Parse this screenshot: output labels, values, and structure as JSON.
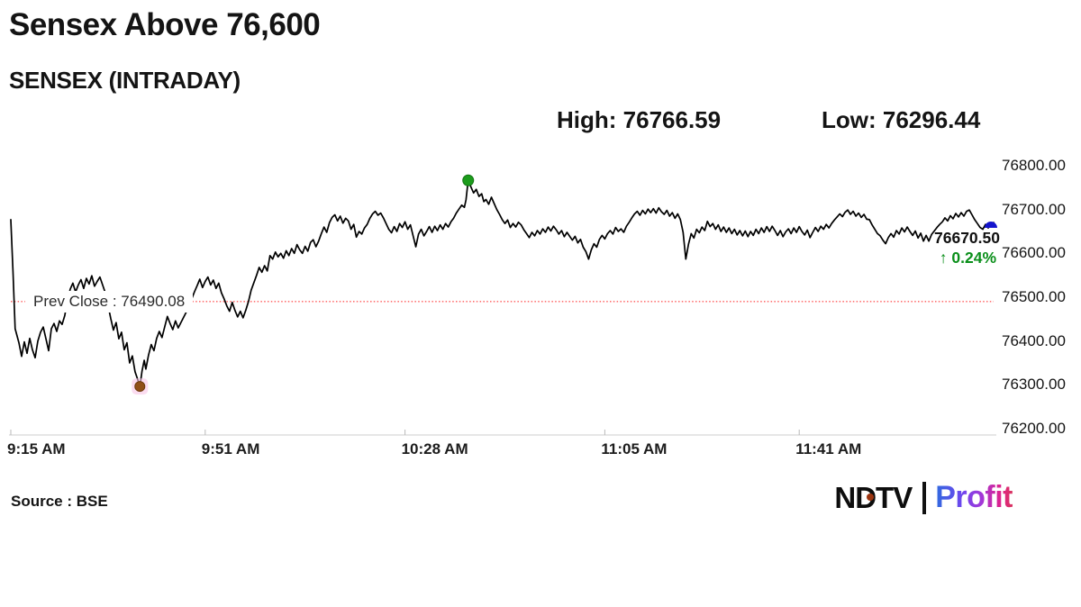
{
  "header": {
    "title": "Sensex Above 76,600",
    "subtitle": "SENSEX (INTRADAY)",
    "high_label": "High: 76766.59",
    "low_label": "Low: 76296.44"
  },
  "chart": {
    "prev_close_label": "Prev Close : 76490.08",
    "last_price_label": "76670.50",
    "change_label": "↑ 0.24%"
  },
  "footer": {
    "source": "Source : BSE",
    "logo_ndtv": "NDTV",
    "logo_profit": "Profit"
  },
  "colors": {
    "text": "#141414",
    "line": "#000000",
    "prev_close_line": "#ff5a5a",
    "gain_green": "#0a8f1a",
    "high_marker": "#1c9c1c",
    "high_marker_edge": "#127312",
    "low_marker": "#915018",
    "low_marker_edge": "#6b3a0e",
    "low_marker_halo": "#f8c4e6",
    "last_marker": "#1414cd",
    "axis": "#cccccc",
    "tick": "#b9b9b9",
    "ndtv_dot": "#9c3510"
  },
  "chart_data": {
    "type": "line",
    "title": "SENSEX (INTRADAY)",
    "series_name": "SENSEX",
    "x_unit": "minutes since 9:15 AM",
    "x_range_minutes": [
      0,
      182
    ],
    "x_ticks": [
      {
        "t": 0,
        "label": "9:15 AM"
      },
      {
        "t": 36,
        "label": "9:51 AM"
      },
      {
        "t": 73,
        "label": "10:28 AM"
      },
      {
        "t": 110,
        "label": "11:05 AM"
      },
      {
        "t": 146,
        "label": "11:41 AM"
      }
    ],
    "ylim": [
      76200,
      76800
    ],
    "y_ticks": [
      76800,
      76700,
      76600,
      76500,
      76400,
      76300,
      76200
    ],
    "grid": false,
    "legend": false,
    "prev_close": 76490.08,
    "high": {
      "t": 84.7,
      "value": 76766.59
    },
    "low": {
      "t": 23.9,
      "value": 76296.44
    },
    "last": {
      "t": 182,
      "value": 76670.5,
      "change_pct": 0.24
    },
    "points": [
      [
        0,
        76677
      ],
      [
        0.4,
        76560
      ],
      [
        0.8,
        76428
      ],
      [
        1.5,
        76396
      ],
      [
        2,
        76365
      ],
      [
        2.5,
        76398
      ],
      [
        3,
        76372
      ],
      [
        3.5,
        76406
      ],
      [
        4,
        76380
      ],
      [
        4.5,
        76362
      ],
      [
        5,
        76400
      ],
      [
        5.5,
        76420
      ],
      [
        6,
        76432
      ],
      [
        6.5,
        76405
      ],
      [
        7,
        76378
      ],
      [
        7.5,
        76428
      ],
      [
        8,
        76440
      ],
      [
        8.5,
        76422
      ],
      [
        9,
        76446
      ],
      [
        9.5,
        76438
      ],
      [
        10,
        76458
      ],
      [
        10.5,
        76492
      ],
      [
        11,
        76518
      ],
      [
        11.5,
        76532
      ],
      [
        12,
        76512
      ],
      [
        12.5,
        76528
      ],
      [
        13,
        76540
      ],
      [
        13.5,
        76520
      ],
      [
        14,
        76543
      ],
      [
        14.5,
        76530
      ],
      [
        15,
        76549
      ],
      [
        15.5,
        76525
      ],
      [
        16,
        76536
      ],
      [
        16.5,
        76546
      ],
      [
        17,
        76528
      ],
      [
        17.5,
        76510
      ],
      [
        18,
        76482
      ],
      [
        18.5,
        76452
      ],
      [
        19,
        76425
      ],
      [
        19.5,
        76442
      ],
      [
        20,
        76405
      ],
      [
        20.5,
        76420
      ],
      [
        21,
        76380
      ],
      [
        21.5,
        76396
      ],
      [
        22,
        76350
      ],
      [
        22.5,
        76366
      ],
      [
        23,
        76330
      ],
      [
        23.5,
        76312
      ],
      [
        23.9,
        76296.44
      ],
      [
        24.3,
        76332
      ],
      [
        24.7,
        76356
      ],
      [
        25,
        76336
      ],
      [
        25.5,
        76368
      ],
      [
        26,
        76392
      ],
      [
        26.5,
        76378
      ],
      [
        27,
        76406
      ],
      [
        27.5,
        76422
      ],
      [
        28,
        76408
      ],
      [
        28.5,
        76432
      ],
      [
        29,
        76456
      ],
      [
        29.5,
        76440
      ],
      [
        30,
        76426
      ],
      [
        30.5,
        76446
      ],
      [
        31,
        76430
      ],
      [
        31.5,
        76442
      ],
      [
        32,
        76454
      ],
      [
        32.5,
        76466
      ],
      [
        33,
        76482
      ],
      [
        33.5,
        76496
      ],
      [
        34,
        76512
      ],
      [
        34.5,
        76526
      ],
      [
        35,
        76541
      ],
      [
        35.5,
        76522
      ],
      [
        36,
        76536
      ],
      [
        36.5,
        76546
      ],
      [
        37,
        76528
      ],
      [
        37.5,
        76539
      ],
      [
        38,
        76520
      ],
      [
        38.5,
        76532
      ],
      [
        39,
        76510
      ],
      [
        39.5,
        76496
      ],
      [
        40,
        76480
      ],
      [
        40.5,
        76468
      ],
      [
        41,
        76488
      ],
      [
        41.5,
        76470
      ],
      [
        42,
        76455
      ],
      [
        42.5,
        76468
      ],
      [
        43,
        76453
      ],
      [
        43.5,
        76470
      ],
      [
        44,
        76490
      ],
      [
        44.5,
        76516
      ],
      [
        45,
        76533
      ],
      [
        45.5,
        76550
      ],
      [
        46,
        76568
      ],
      [
        46.5,
        76557
      ],
      [
        47,
        76572
      ],
      [
        47.5,
        76560
      ],
      [
        48,
        76595
      ],
      [
        48.5,
        76587
      ],
      [
        49,
        76603
      ],
      [
        49.5,
        76592
      ],
      [
        50,
        76600
      ],
      [
        50.5,
        76589
      ],
      [
        51,
        76606
      ],
      [
        51.5,
        76595
      ],
      [
        52,
        76611
      ],
      [
        52.5,
        76600
      ],
      [
        53,
        76620
      ],
      [
        53.5,
        76608
      ],
      [
        54,
        76600
      ],
      [
        54.5,
        76616
      ],
      [
        55,
        76605
      ],
      [
        55.5,
        76625
      ],
      [
        56,
        76631
      ],
      [
        56.5,
        76615
      ],
      [
        57,
        76628
      ],
      [
        57.5,
        76645
      ],
      [
        58,
        76660
      ],
      [
        58.5,
        76648
      ],
      [
        59,
        76670
      ],
      [
        59.5,
        76682
      ],
      [
        60,
        76688
      ],
      [
        60.5,
        76674
      ],
      [
        61,
        76685
      ],
      [
        61.5,
        76669
      ],
      [
        62,
        76680
      ],
      [
        62.5,
        76674
      ],
      [
        63,
        76655
      ],
      [
        63.5,
        76666
      ],
      [
        64,
        76637
      ],
      [
        64.5,
        76650
      ],
      [
        65,
        76644
      ],
      [
        65.5,
        76658
      ],
      [
        66,
        76666
      ],
      [
        66.5,
        76680
      ],
      [
        67,
        76690
      ],
      [
        67.5,
        76696
      ],
      [
        68,
        76687
      ],
      [
        68.5,
        76692
      ],
      [
        69,
        76681
      ],
      [
        69.5,
        76668
      ],
      [
        70,
        76655
      ],
      [
        70.5,
        76647
      ],
      [
        71,
        76661
      ],
      [
        71.5,
        76650
      ],
      [
        72,
        76668
      ],
      [
        72.5,
        76659
      ],
      [
        73,
        76672
      ],
      [
        73.5,
        76655
      ],
      [
        74,
        76665
      ],
      [
        74.5,
        76640
      ],
      [
        75,
        76615
      ],
      [
        75.5,
        76644
      ],
      [
        76,
        76655
      ],
      [
        76.5,
        76640
      ],
      [
        77,
        76650
      ],
      [
        77.5,
        76661
      ],
      [
        78,
        76648
      ],
      [
        78.5,
        76662
      ],
      [
        79,
        76652
      ],
      [
        79.5,
        76665
      ],
      [
        80,
        76655
      ],
      [
        80.5,
        76668
      ],
      [
        81,
        76660
      ],
      [
        81.5,
        76672
      ],
      [
        82,
        76680
      ],
      [
        82.5,
        76692
      ],
      [
        83,
        76701
      ],
      [
        83.5,
        76710
      ],
      [
        84,
        76705
      ],
      [
        84.3,
        76722
      ],
      [
        84.7,
        76766.59
      ],
      [
        85.2,
        76752
      ],
      [
        85.7,
        76738
      ],
      [
        86.2,
        76746
      ],
      [
        86.7,
        76730
      ],
      [
        87.2,
        76736
      ],
      [
        87.6,
        76718
      ],
      [
        88,
        76723
      ],
      [
        88.5,
        76712
      ],
      [
        89,
        76728
      ],
      [
        89.5,
        76714
      ],
      [
        90,
        76700
      ],
      [
        90.5,
        76689
      ],
      [
        91,
        76677
      ],
      [
        91.5,
        76668
      ],
      [
        92,
        76676
      ],
      [
        92.5,
        76659
      ],
      [
        93,
        76668
      ],
      [
        93.5,
        76660
      ],
      [
        94,
        76671
      ],
      [
        94.5,
        76665
      ],
      [
        95,
        76654
      ],
      [
        95.5,
        76645
      ],
      [
        96,
        76636
      ],
      [
        96.5,
        76648
      ],
      [
        97,
        76640
      ],
      [
        97.5,
        76652
      ],
      [
        98,
        76644
      ],
      [
        98.5,
        76656
      ],
      [
        99,
        76648
      ],
      [
        99.5,
        76660
      ],
      [
        100,
        76651
      ],
      [
        100.5,
        76662
      ],
      [
        101,
        76654
      ],
      [
        101.5,
        76644
      ],
      [
        102,
        76652
      ],
      [
        102.5,
        76638
      ],
      [
        103,
        76648
      ],
      [
        103.5,
        76639
      ],
      [
        104,
        76630
      ],
      [
        104.5,
        76639
      ],
      [
        105,
        76624
      ],
      [
        105.5,
        76632
      ],
      [
        106,
        76614
      ],
      [
        106.5,
        76604
      ],
      [
        107,
        76587
      ],
      [
        107.5,
        76608
      ],
      [
        108,
        76622
      ],
      [
        108.5,
        76614
      ],
      [
        109,
        76632
      ],
      [
        109.5,
        76641
      ],
      [
        110,
        76633
      ],
      [
        110.5,
        76645
      ],
      [
        111,
        76652
      ],
      [
        111.5,
        76644
      ],
      [
        112,
        76659
      ],
      [
        112.5,
        76650
      ],
      [
        113,
        76656
      ],
      [
        113.5,
        76648
      ],
      [
        114,
        76662
      ],
      [
        114.5,
        76671
      ],
      [
        115,
        76681
      ],
      [
        115.5,
        76690
      ],
      [
        116,
        76696
      ],
      [
        116.5,
        76687
      ],
      [
        117,
        76698
      ],
      [
        117.5,
        76690
      ],
      [
        118,
        76701
      ],
      [
        118.5,
        76693
      ],
      [
        119,
        76702
      ],
      [
        119.5,
        76692
      ],
      [
        120,
        76704
      ],
      [
        120.5,
        76695
      ],
      [
        121,
        76689
      ],
      [
        121.5,
        76698
      ],
      [
        122,
        76685
      ],
      [
        122.5,
        76693
      ],
      [
        123,
        76680
      ],
      [
        123.5,
        76690
      ],
      [
        124,
        76677
      ],
      [
        124.5,
        76648
      ],
      [
        125,
        76587
      ],
      [
        125.5,
        76621
      ],
      [
        126,
        76645
      ],
      [
        126.5,
        76635
      ],
      [
        127,
        76655
      ],
      [
        127.5,
        76647
      ],
      [
        128,
        76660
      ],
      [
        128.5,
        76652
      ],
      [
        129,
        76673
      ],
      [
        129.5,
        76661
      ],
      [
        130,
        76668
      ],
      [
        130.5,
        76655
      ],
      [
        131,
        76665
      ],
      [
        131.5,
        76650
      ],
      [
        132,
        76660
      ],
      [
        132.5,
        76648
      ],
      [
        133,
        76658
      ],
      [
        133.5,
        76645
      ],
      [
        134,
        76655
      ],
      [
        134.5,
        76642
      ],
      [
        135,
        76652
      ],
      [
        135.5,
        76640
      ],
      [
        136,
        76651
      ],
      [
        136.5,
        76638
      ],
      [
        137,
        76650
      ],
      [
        137.5,
        76641
      ],
      [
        138,
        76655
      ],
      [
        138.5,
        76645
      ],
      [
        139,
        76658
      ],
      [
        139.5,
        76648
      ],
      [
        140,
        76661
      ],
      [
        140.5,
        76650
      ],
      [
        141,
        76662
      ],
      [
        141.5,
        76652
      ],
      [
        142,
        76641
      ],
      [
        142.5,
        76652
      ],
      [
        143,
        76638
      ],
      [
        143.5,
        76649
      ],
      [
        144,
        76656
      ],
      [
        144.5,
        76645
      ],
      [
        145,
        76658
      ],
      [
        145.5,
        76648
      ],
      [
        146,
        76661
      ],
      [
        146.5,
        76650
      ],
      [
        147,
        76642
      ],
      [
        147.5,
        76653
      ],
      [
        148,
        76636
      ],
      [
        148.5,
        76648
      ],
      [
        149,
        76659
      ],
      [
        149.5,
        76650
      ],
      [
        150,
        76662
      ],
      [
        150.5,
        76655
      ],
      [
        151,
        76666
      ],
      [
        151.5,
        76658
      ],
      [
        152,
        76668
      ],
      [
        152.5,
        76676
      ],
      [
        153,
        76683
      ],
      [
        153.5,
        76690
      ],
      [
        154,
        76684
      ],
      [
        154.5,
        76694
      ],
      [
        155,
        76699
      ],
      [
        155.5,
        76689
      ],
      [
        156,
        76696
      ],
      [
        156.5,
        76685
      ],
      [
        157,
        76692
      ],
      [
        157.5,
        76682
      ],
      [
        158,
        76689
      ],
      [
        158.5,
        76678
      ],
      [
        159,
        76677
      ],
      [
        159.5,
        76665
      ],
      [
        160,
        76655
      ],
      [
        160.5,
        76645
      ],
      [
        161,
        76640
      ],
      [
        161.5,
        76630
      ],
      [
        162,
        76622
      ],
      [
        162.5,
        76636
      ],
      [
        163,
        76645
      ],
      [
        163.5,
        76637
      ],
      [
        164,
        76652
      ],
      [
        164.5,
        76644
      ],
      [
        165,
        76658
      ],
      [
        165.5,
        76649
      ],
      [
        166,
        76660
      ],
      [
        166.5,
        76650
      ],
      [
        167,
        76641
      ],
      [
        167.5,
        76651
      ],
      [
        168,
        76635
      ],
      [
        168.5,
        76646
      ],
      [
        169,
        76628
      ],
      [
        169.5,
        76641
      ],
      [
        170,
        76628
      ],
      [
        170.5,
        76643
      ],
      [
        171,
        76651
      ],
      [
        171.5,
        76659
      ],
      [
        172,
        76666
      ],
      [
        172.5,
        76672
      ],
      [
        173,
        76681
      ],
      [
        173.5,
        76674
      ],
      [
        174,
        76686
      ],
      [
        174.5,
        76679
      ],
      [
        175,
        76691
      ],
      [
        175.5,
        76683
      ],
      [
        176,
        76693
      ],
      [
        176.5,
        76685
      ],
      [
        177,
        76696
      ],
      [
        177.5,
        76699
      ],
      [
        178,
        76688
      ],
      [
        178.5,
        76677
      ],
      [
        179,
        76668
      ],
      [
        179.5,
        76659
      ],
      [
        180,
        76655
      ],
      [
        180.5,
        76666
      ],
      [
        181,
        76658
      ],
      [
        181.5,
        76666
      ],
      [
        182,
        76670.5
      ]
    ]
  }
}
